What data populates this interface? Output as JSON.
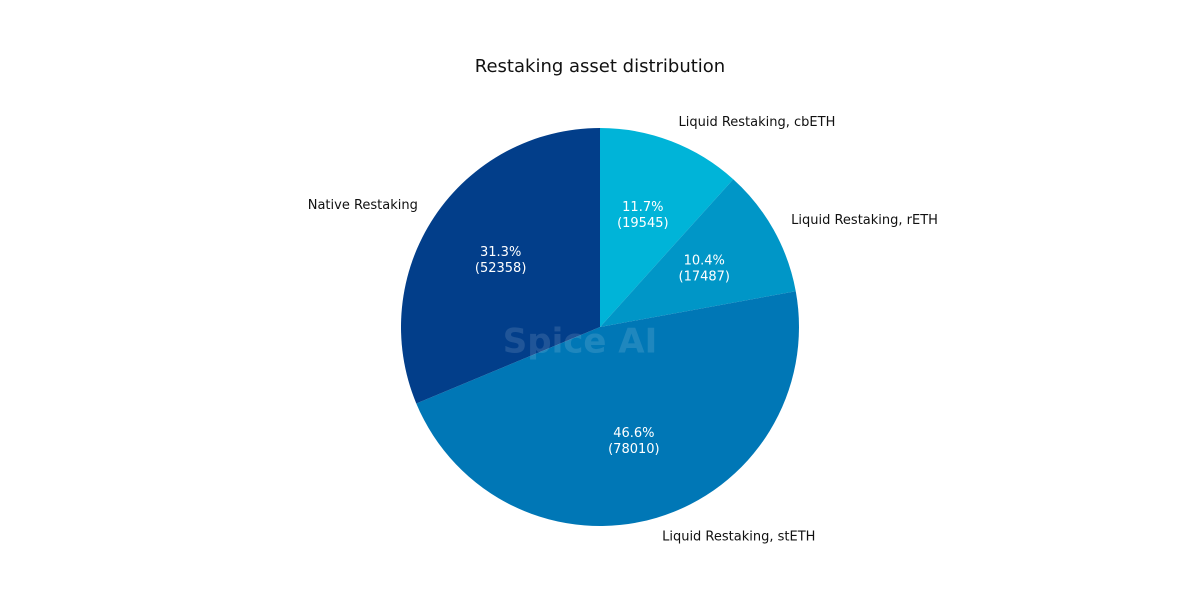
{
  "chart_data": {
    "type": "pie",
    "title": "Restaking asset distribution",
    "categories": [
      "Liquid Restaking, cbETH",
      "Liquid Restaking, rETH",
      "Liquid Restaking, stETH",
      "Native Restaking"
    ],
    "values": [
      19545,
      17487,
      78010,
      52358
    ],
    "value_labels": [
      "(19545)",
      "(17487)",
      "(78010)",
      "(52358)"
    ],
    "percent_labels": [
      "11.7%",
      "10.4%",
      "46.6%",
      "31.3%"
    ],
    "colors": [
      "#00b4d8",
      "#0096c7",
      "#0077b6",
      "#023e8a"
    ],
    "watermark": "Spice AI"
  }
}
